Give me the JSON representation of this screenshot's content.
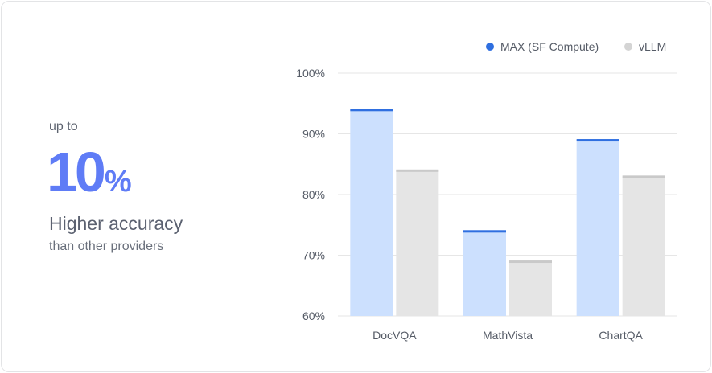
{
  "stat": {
    "kicker": "up to",
    "number": "10",
    "unit": "%",
    "headline": "Higher accuracy",
    "subline": "than other providers"
  },
  "colors": {
    "max_fill": "#cce0fe",
    "max_cap": "#2f6fe0",
    "vllm_fill": "#e5e5e5",
    "vllm_cap": "#c9c9c9",
    "legend_max": "#2f6fe0",
    "legend_vllm": "#d4d4d4",
    "grid": "#e6e6e6",
    "text": "#555b66"
  },
  "chart_data": {
    "type": "bar",
    "categories": [
      "DocVQA",
      "MathVista",
      "ChartQA"
    ],
    "series": [
      {
        "name": "MAX (SF Compute)",
        "values": [
          94,
          74,
          89
        ]
      },
      {
        "name": "vLLM",
        "values": [
          84,
          69,
          83
        ]
      }
    ],
    "ylim": [
      60,
      100
    ],
    "yticks": [
      60,
      70,
      80,
      90,
      100
    ],
    "ytick_labels": [
      "60%",
      "70%",
      "80%",
      "90%",
      "100%"
    ],
    "grid": true,
    "legend_position": "top-right"
  }
}
